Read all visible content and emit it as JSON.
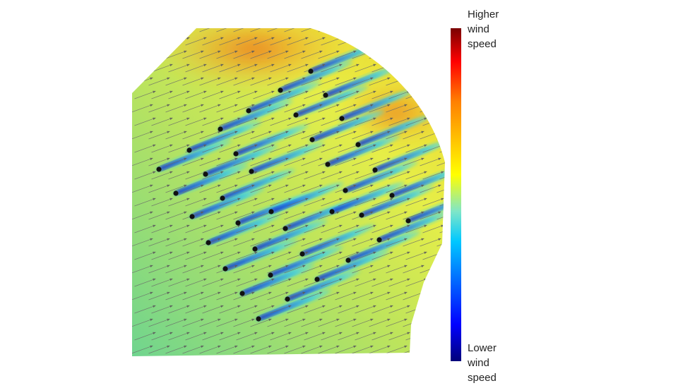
{
  "colorbar": {
    "high_label": [
      "Higher",
      "wind",
      "speed"
    ],
    "low_label": [
      "Lower",
      "wind",
      "speed"
    ],
    "stops": [
      "#00007a",
      "#0000ff",
      "#00c8ff",
      "#7fe6c8",
      "#ffff00",
      "#ff8000",
      "#ff0000",
      "#7a0000"
    ]
  },
  "field_colors": {
    "base_low": "#6cd491",
    "base_mid": "#e2ee4c",
    "base_high": "#f1d522",
    "hot": "#ef8a1e",
    "wake_core": "#0a1ec8",
    "wake_edge": "#3ad6e8"
  },
  "turbine_count": 38,
  "wind_direction": "south-west to north-east"
}
